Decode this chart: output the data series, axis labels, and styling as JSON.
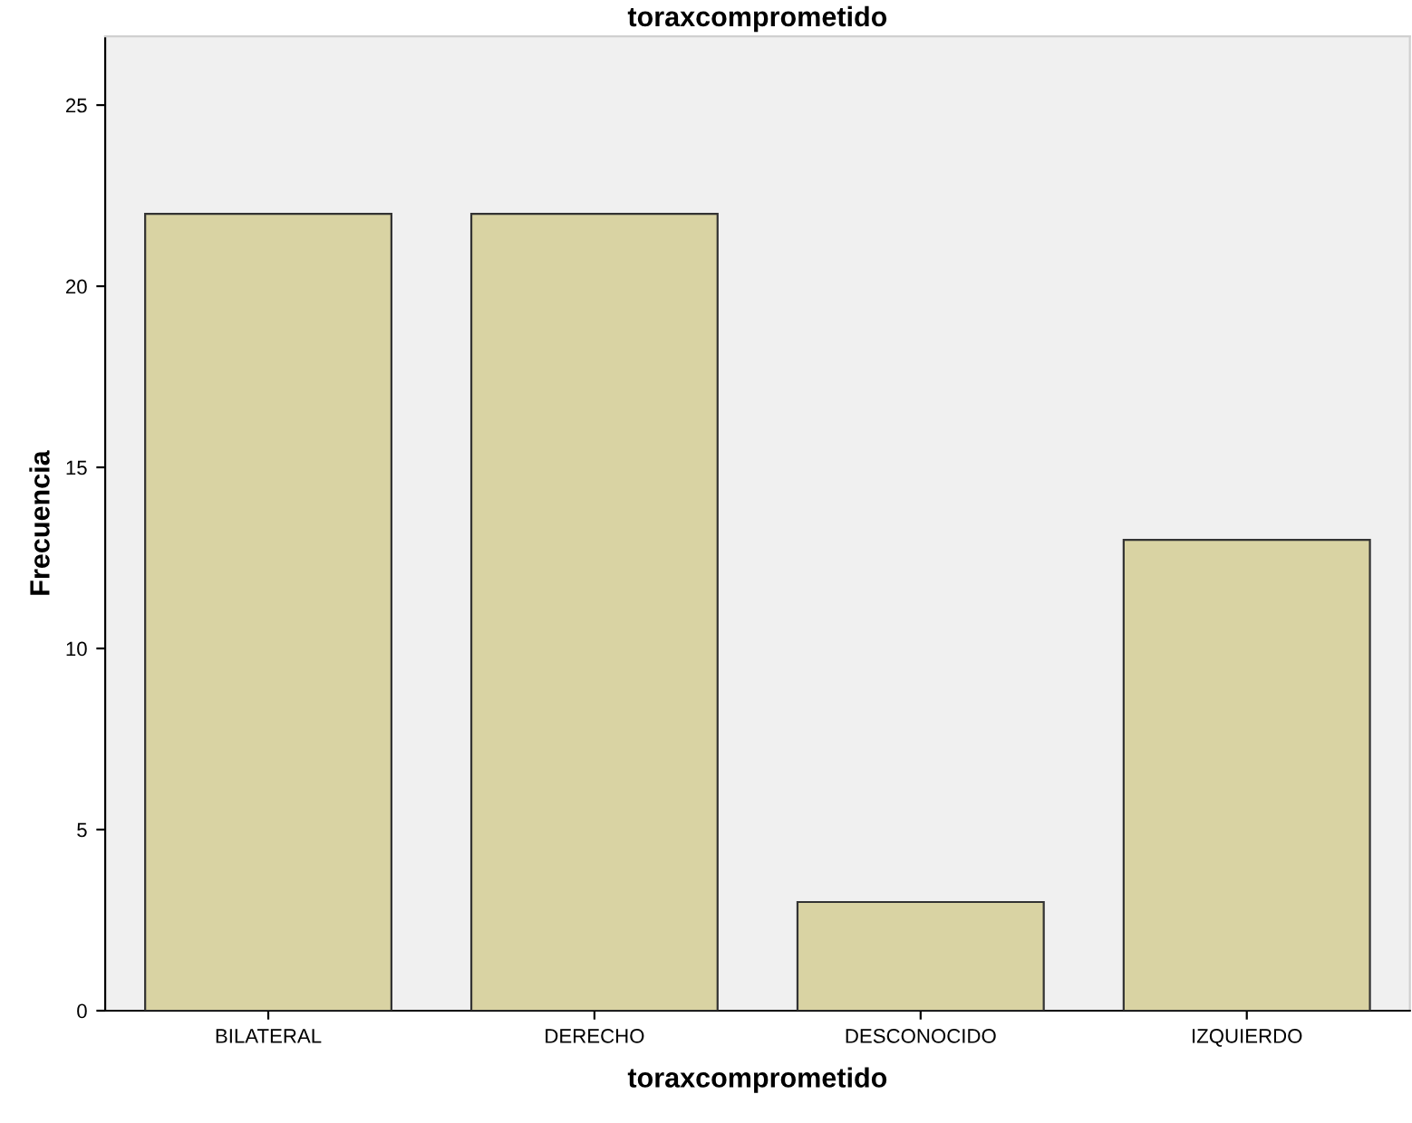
{
  "chart_data": {
    "type": "bar",
    "title": "toraxcomprometido",
    "xlabel": "toraxcomprometido",
    "ylabel": "Frecuencia",
    "categories": [
      "BILATERAL",
      "DERECHO",
      "DESCONOCIDO",
      "IZQUIERDO"
    ],
    "values": [
      22,
      22,
      3,
      13
    ],
    "color": "#d9d3a3",
    "ylim": [
      0,
      26.9
    ],
    "yticks": [
      0,
      5,
      10,
      15,
      20,
      25
    ],
    "grid": false
  }
}
